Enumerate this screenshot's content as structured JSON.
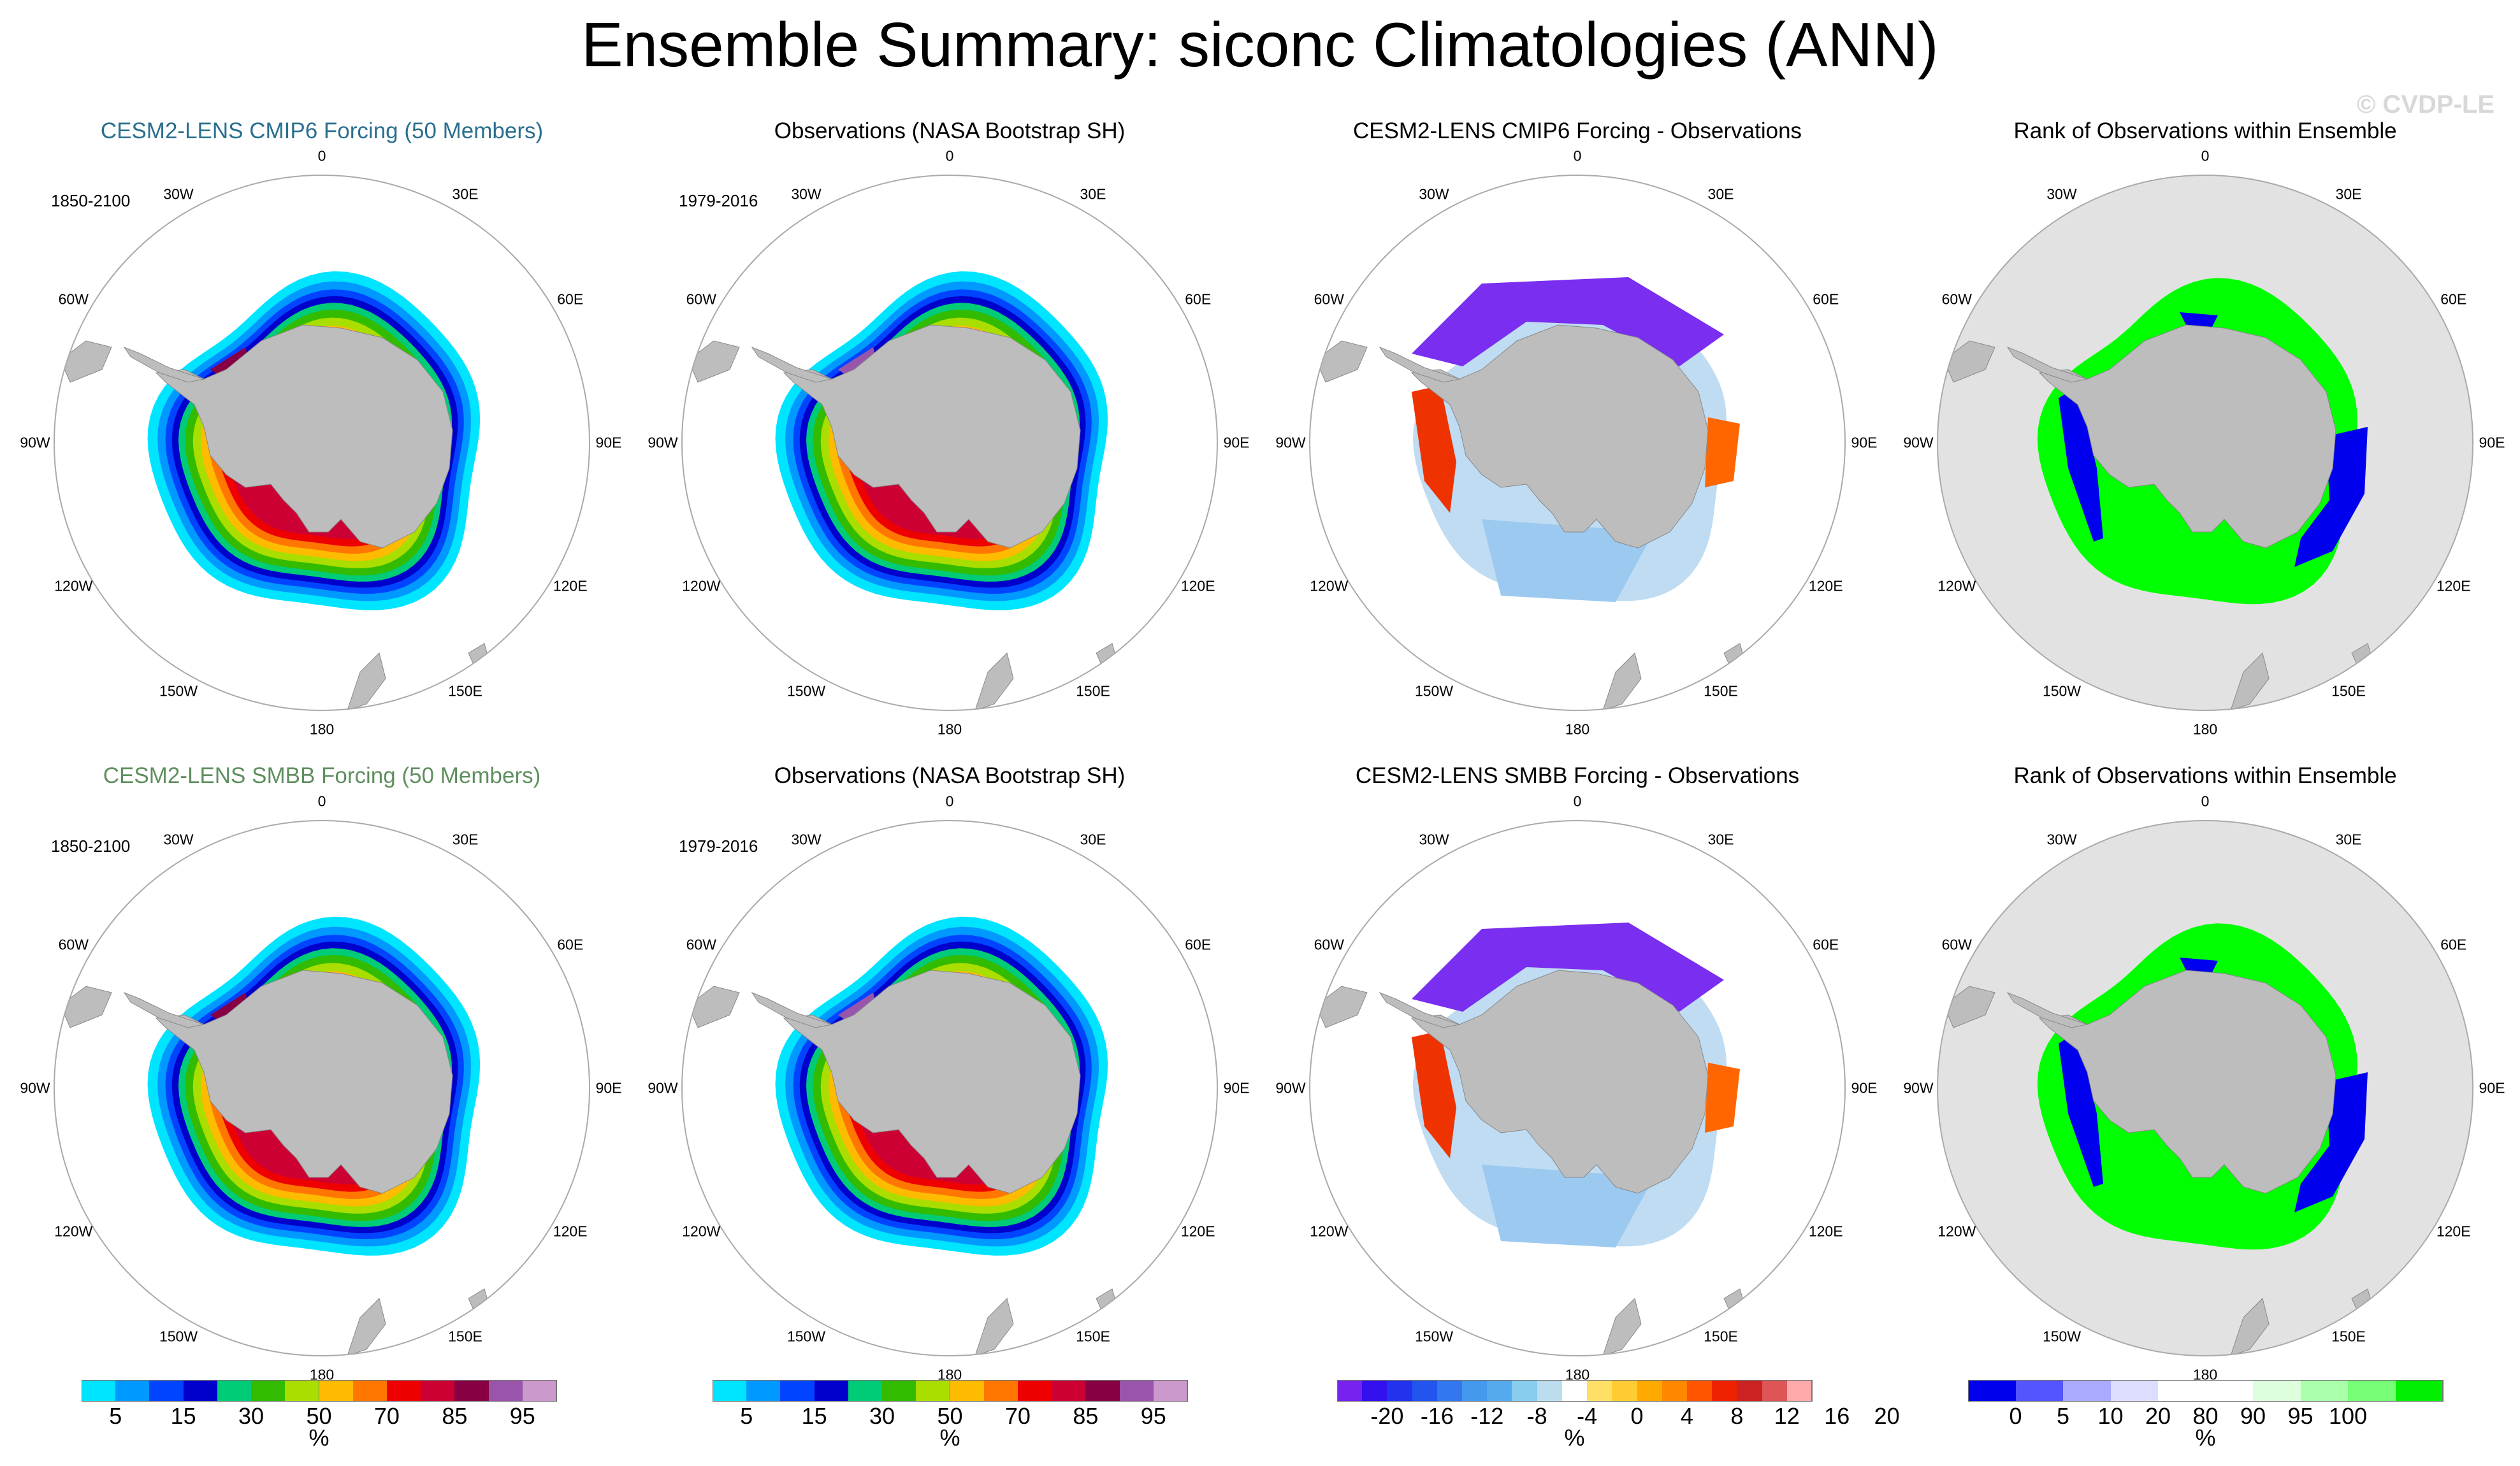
{
  "title": "Ensemble Summary: siconc Climatologies (ANN)",
  "watermark": "© CVDP-LE",
  "lon_labels": [
    "0",
    "30E",
    "60E",
    "90E",
    "120E",
    "150E",
    "180",
    "150W",
    "120W",
    "90W",
    "60W",
    "30W"
  ],
  "rows": [
    {
      "panels": [
        {
          "title": "CESM2-LENS CMIP6 Forcing (50 Members)",
          "title_color": "#2a6f8f",
          "years": "1850-2100",
          "kind": "clim"
        },
        {
          "title": "Observations (NASA Bootstrap SH)",
          "title_color": "#000000",
          "years": "1979-2016",
          "kind": "obs"
        },
        {
          "title": "CESM2-LENS CMIP6 Forcing - Observations",
          "title_color": "#000000",
          "years": "",
          "kind": "diff"
        },
        {
          "title": "Rank of Observations within Ensemble",
          "title_color": "#000000",
          "years": "",
          "kind": "rank"
        }
      ]
    },
    {
      "panels": [
        {
          "title": "CESM2-LENS SMBB Forcing (50 Members)",
          "title_color": "#5f8f5f",
          "years": "1850-2100",
          "kind": "clim"
        },
        {
          "title": "Observations (NASA Bootstrap SH)",
          "title_color": "#000000",
          "years": "1979-2016",
          "kind": "obs"
        },
        {
          "title": "CESM2-LENS SMBB Forcing - Observations",
          "title_color": "#000000",
          "years": "",
          "kind": "diff"
        },
        {
          "title": "Rank of Observations within Ensemble",
          "title_color": "#000000",
          "years": "",
          "kind": "rank"
        }
      ]
    }
  ],
  "colorbars": [
    {
      "name": "clim-1",
      "unit": "%",
      "colors": [
        "#00e5ff",
        "#0099ff",
        "#0044ff",
        "#0000cc",
        "#00cc77",
        "#33bb00",
        "#aadd00",
        "#ffbb00",
        "#ff7700",
        "#ee0000",
        "#cc0033",
        "#880044",
        "#9955aa",
        "#cc99cc"
      ],
      "ticks": [
        "5",
        "15",
        "30",
        "50",
        "70",
        "85",
        "95"
      ]
    },
    {
      "name": "clim-2",
      "unit": "%",
      "colors": [
        "#00e5ff",
        "#0099ff",
        "#0044ff",
        "#0000cc",
        "#00cc77",
        "#33bb00",
        "#aadd00",
        "#ffbb00",
        "#ff7700",
        "#ee0000",
        "#cc0033",
        "#880044",
        "#9955aa",
        "#cc99cc"
      ],
      "ticks": [
        "5",
        "15",
        "30",
        "50",
        "70",
        "85",
        "95"
      ]
    },
    {
      "name": "diff",
      "unit": "%",
      "colors": [
        "#7722ee",
        "#3311ee",
        "#2233ee",
        "#2255ee",
        "#3377ee",
        "#4499ee",
        "#55aaee",
        "#88ccee",
        "#bbddee",
        "#ffffff",
        "#ffe066",
        "#ffcc33",
        "#ffaa00",
        "#ff8800",
        "#ff5500",
        "#ee2200",
        "#cc2222",
        "#dd5555",
        "#ffaaaa"
      ],
      "ticks": [
        "-20",
        "-16",
        "-12",
        "-8",
        "-4",
        "0",
        "4",
        "8",
        "12",
        "16",
        "20"
      ]
    },
    {
      "name": "rank",
      "unit": "%",
      "colors": [
        "#0000ee",
        "#5555ff",
        "#aaaaff",
        "#ddddff",
        "#ffffff",
        "#ffffff",
        "#ddffdd",
        "#aaffaa",
        "#77ff77",
        "#00ee00"
      ],
      "ticks": [
        "0",
        "5",
        "10",
        "20",
        "80",
        "90",
        "95",
        "100"
      ]
    }
  ],
  "colors": {
    "land": "#bdbdbd",
    "ocean_rank": "#e2e2e2",
    "circle": "#aaaaaa"
  }
}
